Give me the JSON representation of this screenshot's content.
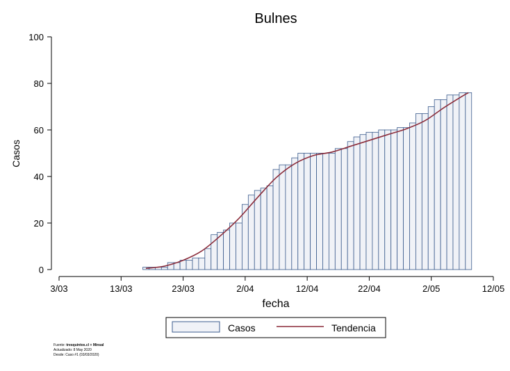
{
  "chart_data": {
    "type": "bar",
    "title": "Bulnes",
    "xlabel": "fecha",
    "ylabel": "Casos",
    "ylim": [
      0,
      100
    ],
    "yticks": [
      0,
      20,
      40,
      60,
      80,
      100
    ],
    "xlim": [
      "2020-03-03",
      "2020-05-12"
    ],
    "xticks": [
      {
        "date": "2020-03-03",
        "label": "3/03"
      },
      {
        "date": "2020-03-13",
        "label": "13/03"
      },
      {
        "date": "2020-03-23",
        "label": "23/03"
      },
      {
        "date": "2020-04-02",
        "label": "2/04"
      },
      {
        "date": "2020-04-12",
        "label": "12/04"
      },
      {
        "date": "2020-04-22",
        "label": "22/04"
      },
      {
        "date": "2020-05-02",
        "label": "2/05"
      },
      {
        "date": "2020-05-12",
        "label": "12/05"
      }
    ],
    "grid": false,
    "legend_position": "bottom",
    "series": [
      {
        "name": "Casos",
        "type": "bar",
        "color": "#f0f2f7",
        "edge_color": "#3a5a8c",
        "x": [
          "2020-03-17",
          "2020-03-18",
          "2020-03-19",
          "2020-03-20",
          "2020-03-21",
          "2020-03-22",
          "2020-03-23",
          "2020-03-24",
          "2020-03-25",
          "2020-03-26",
          "2020-03-27",
          "2020-03-28",
          "2020-03-29",
          "2020-03-30",
          "2020-03-31",
          "2020-04-01",
          "2020-04-02",
          "2020-04-03",
          "2020-04-04",
          "2020-04-05",
          "2020-04-06",
          "2020-04-07",
          "2020-04-08",
          "2020-04-09",
          "2020-04-10",
          "2020-04-11",
          "2020-04-12",
          "2020-04-13",
          "2020-04-14",
          "2020-04-15",
          "2020-04-16",
          "2020-04-17",
          "2020-04-18",
          "2020-04-19",
          "2020-04-20",
          "2020-04-21",
          "2020-04-22",
          "2020-04-23",
          "2020-04-24",
          "2020-04-25",
          "2020-04-26",
          "2020-04-27",
          "2020-04-28",
          "2020-04-29",
          "2020-04-30",
          "2020-05-01",
          "2020-05-02",
          "2020-05-03",
          "2020-05-04",
          "2020-05-05",
          "2020-05-06",
          "2020-05-07",
          "2020-05-08"
        ],
        "values": [
          1,
          1,
          1,
          1,
          3,
          3,
          4,
          4,
          5,
          5,
          9,
          15,
          16,
          17,
          20,
          20,
          28,
          32,
          34,
          35,
          36,
          43,
          45,
          45,
          48,
          50,
          50,
          50,
          50,
          50,
          50,
          52,
          52,
          55,
          57,
          58,
          59,
          59,
          60,
          60,
          60,
          61,
          61,
          63,
          67,
          67,
          70,
          73,
          73,
          75,
          75,
          76,
          76
        ]
      },
      {
        "name": "Tendencia",
        "type": "line",
        "color": "#8b2c3a",
        "x": [
          "2020-03-17",
          "2020-03-20",
          "2020-03-23",
          "2020-03-26",
          "2020-03-29",
          "2020-04-01",
          "2020-04-04",
          "2020-04-07",
          "2020-04-10",
          "2020-04-13",
          "2020-04-16",
          "2020-04-19",
          "2020-04-22",
          "2020-04-25",
          "2020-04-28",
          "2020-05-01",
          "2020-05-04",
          "2020-05-07",
          "2020-05-08"
        ],
        "values": [
          0.5,
          1.5,
          4,
          8,
          14.5,
          22,
          31,
          39.5,
          45.5,
          49,
          50.5,
          53,
          55.5,
          58,
          60.5,
          64,
          69.5,
          74.5,
          76
        ]
      }
    ]
  },
  "footer": {
    "source_label": "Fuente: ",
    "source_value": "tresquintos.cl + Minsal",
    "updated": "Actualizado: 8 May 2020",
    "since": "Desde: Caso #1  (03/03/2020)"
  }
}
